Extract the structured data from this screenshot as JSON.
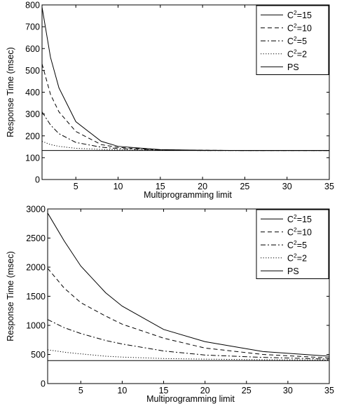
{
  "chart_data": [
    {
      "type": "line",
      "xlabel": "Multiprogramming limit",
      "ylabel": "Response Time (msec)",
      "xlim": [
        1,
        35
      ],
      "ylim": [
        0,
        800
      ],
      "xticks": [
        "5",
        "10",
        "15",
        "20",
        "25",
        "30",
        "35"
      ],
      "yticks": [
        "0",
        "100",
        "200",
        "300",
        "400",
        "500",
        "600",
        "700",
        "800"
      ],
      "grid": false,
      "legend_position": "top-right",
      "series": [
        {
          "name": "C²=15",
          "legend_base": "C",
          "legend_sup": "2",
          "legend_rest": "=15",
          "style": "solid",
          "x": [
            1,
            2,
            3,
            5,
            8,
            10,
            15,
            20,
            25,
            30,
            35
          ],
          "y": [
            790,
            560,
            420,
            265,
            175,
            152,
            137,
            134,
            133,
            133,
            133
          ]
        },
        {
          "name": "C²=10",
          "legend_base": "C",
          "legend_sup": "2",
          "legend_rest": "=10",
          "style": "dashed",
          "x": [
            1,
            2,
            3,
            5,
            8,
            10,
            15,
            20,
            25,
            30,
            35
          ],
          "y": [
            530,
            390,
            310,
            220,
            160,
            147,
            136,
            134,
            133,
            133,
            133
          ]
        },
        {
          "name": "C²=5",
          "legend_base": "C",
          "legend_sup": "2",
          "legend_rest": "=5",
          "style": "dashdot",
          "x": [
            1,
            2,
            3,
            5,
            8,
            10,
            15,
            20,
            25,
            30,
            35
          ],
          "y": [
            310,
            250,
            210,
            170,
            148,
            142,
            135,
            133,
            133,
            133,
            133
          ]
        },
        {
          "name": "C²=2",
          "legend_base": "C",
          "legend_sup": "2",
          "legend_rest": "=2",
          "style": "dotted",
          "x": [
            1,
            2,
            3,
            5,
            8,
            10,
            15,
            20,
            25,
            30,
            35
          ],
          "y": [
            175,
            160,
            152,
            143,
            138,
            136,
            134,
            133,
            133,
            133,
            133
          ]
        },
        {
          "name": "PS",
          "legend_base": "PS",
          "legend_sup": "",
          "legend_rest": "",
          "style": "solid",
          "x": [
            1,
            35
          ],
          "y": [
            133,
            133
          ]
        }
      ]
    },
    {
      "type": "line",
      "xlabel": "Multiprogramming limit",
      "ylabel": "Response Time (msec)",
      "xlim": [
        1,
        35
      ],
      "ylim": [
        0,
        3000
      ],
      "xticks": [
        "5",
        "10",
        "15",
        "20",
        "25",
        "30",
        "35"
      ],
      "yticks": [
        "0",
        "500",
        "1000",
        "1500",
        "2000",
        "2500",
        "3000"
      ],
      "grid": false,
      "legend_position": "top-right",
      "series": [
        {
          "name": "C²=15",
          "legend_base": "C",
          "legend_sup": "2",
          "legend_rest": "=15",
          "style": "solid",
          "x": [
            1,
            3,
            5,
            8,
            10,
            15,
            20,
            27,
            35
          ],
          "y": [
            2930,
            2450,
            2020,
            1560,
            1330,
            930,
            720,
            550,
            470
          ]
        },
        {
          "name": "C²=10",
          "legend_base": "C",
          "legend_sup": "2",
          "legend_rest": "=10",
          "style": "dashed",
          "x": [
            1,
            3,
            5,
            8,
            10,
            15,
            20,
            27,
            35
          ],
          "y": [
            1980,
            1640,
            1390,
            1160,
            1020,
            780,
            610,
            500,
            440
          ]
        },
        {
          "name": "C²=5",
          "legend_base": "C",
          "legend_sup": "2",
          "legend_rest": "=5",
          "style": "dashdot",
          "x": [
            1,
            3,
            5,
            8,
            10,
            15,
            20,
            27,
            35
          ],
          "y": [
            1100,
            960,
            860,
            740,
            680,
            560,
            490,
            450,
            420
          ]
        },
        {
          "name": "C²=2",
          "legend_base": "C",
          "legend_sup": "2",
          "legend_rest": "=2",
          "style": "dotted",
          "x": [
            1,
            3,
            5,
            8,
            10,
            15,
            20,
            27,
            35
          ],
          "y": [
            580,
            540,
            510,
            470,
            455,
            430,
            420,
            410,
            405
          ]
        },
        {
          "name": "PS",
          "legend_base": "PS",
          "legend_sup": "",
          "legend_rest": "",
          "style": "solid",
          "x": [
            1,
            35
          ],
          "y": [
            395,
            395
          ]
        }
      ]
    }
  ]
}
